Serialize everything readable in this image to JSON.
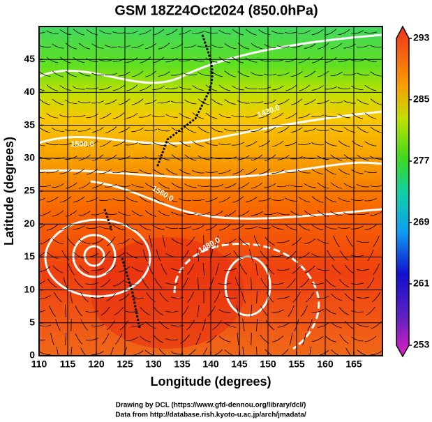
{
  "title": "GSM 18Z24Oct2024 (850.0hPa)",
  "xaxis": {
    "label": "Longitude (degrees)",
    "lim": [
      110,
      170
    ],
    "ticks": [
      110,
      115,
      120,
      125,
      130,
      135,
      140,
      145,
      150,
      155,
      160,
      165
    ]
  },
  "yaxis": {
    "label": "Latitude  (degrees)",
    "lim": [
      0,
      50
    ],
    "ticks": [
      0,
      5,
      10,
      15,
      20,
      25,
      30,
      35,
      40,
      45
    ]
  },
  "colorbar": {
    "lim": [
      253,
      293
    ],
    "ticks": [
      253,
      261,
      269,
      277,
      285,
      293
    ]
  },
  "contour_labels": [
    "1560.0",
    "1500.0",
    "1480.0",
    "1420.0"
  ],
  "credits": [
    "Drawing by DCL (https://www.gfd-dennou.org/library/dcl/)",
    "Data from http://database.rish.kyoto-u.ac.jp/arch/jmadata/"
  ]
}
